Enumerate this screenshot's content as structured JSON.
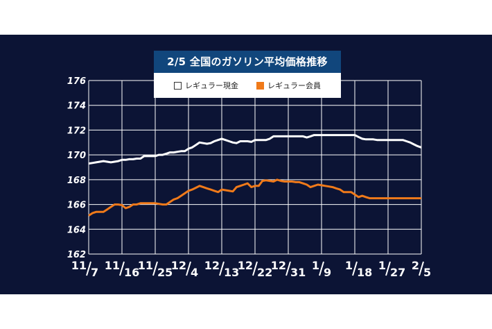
{
  "colors": {
    "background": "#0c1435",
    "title_bar": "#11467c",
    "grid": "#ffffff",
    "cash_line": "#ffffff",
    "member_line": "#f07a1a"
  },
  "chart_data": {
    "type": "line",
    "title": "2/5 全国のガソリン平均価格推移",
    "xlabel": "",
    "ylabel": "",
    "ylim": [
      162,
      176
    ],
    "yticks": [
      162,
      164,
      166,
      168,
      170,
      172,
      174,
      176
    ],
    "grid": true,
    "legend_position": "top-center",
    "x": [
      "11/7",
      "11/8",
      "11/9",
      "11/10",
      "11/11",
      "11/12",
      "11/13",
      "11/14",
      "11/15",
      "11/16",
      "11/17",
      "11/18",
      "11/19",
      "11/20",
      "11/21",
      "11/22",
      "11/23",
      "11/24",
      "11/25",
      "11/26",
      "11/27",
      "11/28",
      "11/29",
      "11/30",
      "12/1",
      "12/2",
      "12/3",
      "12/4",
      "12/5",
      "12/6",
      "12/7",
      "12/8",
      "12/9",
      "12/10",
      "12/11",
      "12/12",
      "12/13",
      "12/14",
      "12/15",
      "12/16",
      "12/17",
      "12/18",
      "12/19",
      "12/20",
      "12/21",
      "12/22",
      "12/23",
      "12/24",
      "12/25",
      "12/26",
      "12/27",
      "12/28",
      "12/29",
      "12/30",
      "12/31",
      "1/1",
      "1/2",
      "1/3",
      "1/4",
      "1/5",
      "1/6",
      "1/7",
      "1/8",
      "1/9",
      "1/10",
      "1/11",
      "1/12",
      "1/13",
      "1/14",
      "1/15",
      "1/16",
      "1/17",
      "1/18",
      "1/19",
      "1/20",
      "1/21",
      "1/22",
      "1/23",
      "1/24",
      "1/25",
      "1/26",
      "1/27",
      "1/28",
      "1/29",
      "1/30",
      "1/31",
      "2/1",
      "2/2",
      "2/3",
      "2/4",
      "2/5"
    ],
    "xtick_labels": [
      {
        "month": "11",
        "day": "7"
      },
      {
        "month": "11",
        "day": "16"
      },
      {
        "month": "11",
        "day": "25"
      },
      {
        "month": "12",
        "day": "4"
      },
      {
        "month": "12",
        "day": "13"
      },
      {
        "month": "12",
        "day": "22"
      },
      {
        "month": "12",
        "day": "31"
      },
      {
        "month": "1",
        "day": "9"
      },
      {
        "month": "1",
        "day": "18"
      },
      {
        "month": "1",
        "day": "27"
      },
      {
        "month": "2",
        "day": "5"
      }
    ],
    "xtick_index": [
      0,
      9,
      18,
      27,
      36,
      45,
      54,
      63,
      72,
      81,
      90
    ],
    "series": [
      {
        "name": "レギュラー現金",
        "color": "#ffffff",
        "values": [
          169.3,
          169.35,
          169.4,
          169.45,
          169.5,
          169.45,
          169.4,
          169.45,
          169.5,
          169.6,
          169.6,
          169.65,
          169.65,
          169.7,
          169.7,
          169.9,
          169.9,
          169.9,
          169.9,
          170.0,
          170.0,
          170.1,
          170.2,
          170.2,
          170.25,
          170.3,
          170.3,
          170.5,
          170.6,
          170.8,
          171.0,
          170.95,
          170.9,
          170.95,
          171.1,
          171.2,
          171.3,
          171.2,
          171.1,
          171.0,
          170.95,
          171.1,
          171.1,
          171.1,
          171.05,
          171.2,
          171.2,
          171.2,
          171.2,
          171.3,
          171.5,
          171.5,
          171.5,
          171.5,
          171.5,
          171.5,
          171.5,
          171.5,
          171.5,
          171.4,
          171.5,
          171.6,
          171.6,
          171.6,
          171.6,
          171.6,
          171.6,
          171.6,
          171.6,
          171.6,
          171.6,
          171.6,
          171.6,
          171.45,
          171.3,
          171.25,
          171.25,
          171.25,
          171.2,
          171.2,
          171.2,
          171.2,
          171.2,
          171.2,
          171.2,
          171.2,
          171.1,
          171.0,
          170.85,
          170.7,
          170.6
        ]
      },
      {
        "name": "レギュラー会員",
        "color": "#f07a1a",
        "values": [
          165.1,
          165.3,
          165.4,
          165.4,
          165.4,
          165.6,
          165.8,
          166.0,
          166.0,
          165.95,
          165.7,
          165.8,
          166.0,
          166.0,
          166.1,
          166.1,
          166.1,
          166.1,
          166.1,
          166.05,
          166.0,
          166.0,
          166.2,
          166.4,
          166.5,
          166.7,
          166.9,
          167.1,
          167.2,
          167.35,
          167.5,
          167.4,
          167.3,
          167.2,
          167.1,
          167.0,
          167.2,
          167.15,
          167.1,
          167.05,
          167.4,
          167.5,
          167.6,
          167.7,
          167.4,
          167.5,
          167.5,
          167.9,
          167.95,
          167.9,
          167.85,
          168.0,
          167.9,
          167.85,
          167.85,
          167.85,
          167.8,
          167.8,
          167.7,
          167.6,
          167.4,
          167.5,
          167.6,
          167.55,
          167.5,
          167.45,
          167.4,
          167.3,
          167.2,
          167.0,
          167.0,
          167.0,
          166.8,
          166.6,
          166.7,
          166.6,
          166.5,
          166.5,
          166.5,
          166.5,
          166.5,
          166.5,
          166.5,
          166.5,
          166.5,
          166.5,
          166.5,
          166.5,
          166.5,
          166.5,
          166.5
        ]
      }
    ]
  }
}
